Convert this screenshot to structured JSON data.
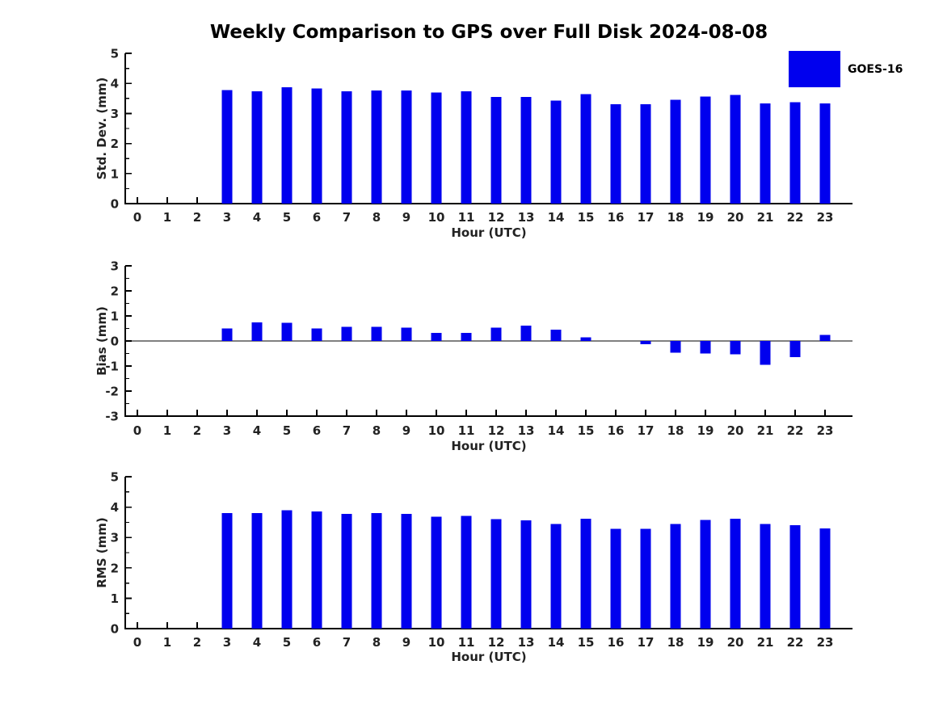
{
  "figure": {
    "title": "Weekly Comparison to GPS over Full Disk 2024-08-08",
    "legend": {
      "label": "GOES-16",
      "color": "#0000EE"
    },
    "background": "#FFFFFF",
    "axis_color": "#000000"
  },
  "chart_data": [
    {
      "id": "std-dev-chart",
      "type": "bar",
      "title": "Weekly Comparison to GPS over Full Disk 2024-08-08",
      "ylabel": "Std. Dev. (mm)",
      "xlabel": "Hour (UTC)",
      "legend": "GOES-16",
      "legend_position": "upper right",
      "grid": false,
      "bar_color": "#0000EE",
      "ylim": [
        0,
        5
      ],
      "yticks": [
        0,
        1,
        2,
        3,
        4,
        5
      ],
      "minor_tick_step": 0.5,
      "categories": [
        0,
        1,
        2,
        3,
        4,
        5,
        6,
        7,
        8,
        9,
        10,
        11,
        12,
        13,
        14,
        15,
        16,
        17,
        18,
        19,
        20,
        21,
        22,
        23
      ],
      "values": [
        null,
        null,
        null,
        3.78,
        3.73,
        3.87,
        3.83,
        3.74,
        3.76,
        3.76,
        3.69,
        3.73,
        3.55,
        3.55,
        3.43,
        3.64,
        3.31,
        3.31,
        3.45,
        3.56,
        3.61,
        3.34,
        3.38,
        3.33
      ]
    },
    {
      "id": "bias-chart",
      "type": "bar",
      "ylabel": "Bias (mm)",
      "xlabel": "Hour (UTC)",
      "grid": false,
      "zero_line": true,
      "bar_color": "#0000EE",
      "ylim": [
        -3,
        3
      ],
      "yticks": [
        -3,
        -2,
        -1,
        0,
        1,
        2,
        3
      ],
      "minor_tick_step": 0.5,
      "categories": [
        0,
        1,
        2,
        3,
        4,
        5,
        6,
        7,
        8,
        9,
        10,
        11,
        12,
        13,
        14,
        15,
        16,
        17,
        18,
        19,
        20,
        21,
        22,
        23
      ],
      "values": [
        null,
        null,
        null,
        0.5,
        0.75,
        0.72,
        0.5,
        0.57,
        0.56,
        0.53,
        0.32,
        0.32,
        0.53,
        0.62,
        0.45,
        0.14,
        0.0,
        -0.13,
        -0.47,
        -0.5,
        -0.53,
        -0.95,
        -0.65,
        0.25
      ]
    },
    {
      "id": "rms-chart",
      "type": "bar",
      "ylabel": "RMS (mm)",
      "xlabel": "Hour (UTC)",
      "grid": false,
      "bar_color": "#0000EE",
      "ylim": [
        0,
        5
      ],
      "yticks": [
        0,
        1,
        2,
        3,
        4,
        5
      ],
      "minor_tick_step": 0.5,
      "categories": [
        0,
        1,
        2,
        3,
        4,
        5,
        6,
        7,
        8,
        9,
        10,
        11,
        12,
        13,
        14,
        15,
        16,
        17,
        18,
        19,
        20,
        21,
        22,
        23
      ],
      "values": [
        null,
        null,
        null,
        3.8,
        3.8,
        3.9,
        3.86,
        3.77,
        3.8,
        3.77,
        3.69,
        3.71,
        3.6,
        3.56,
        3.44,
        3.62,
        3.28,
        3.28,
        3.45,
        3.58,
        3.62,
        3.44,
        3.4,
        3.3
      ]
    }
  ]
}
